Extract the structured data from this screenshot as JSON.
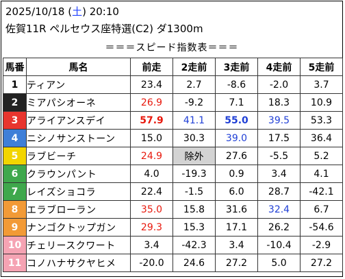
{
  "header": {
    "date": "2025/10/18 (",
    "weekday": "土",
    "time_suffix": ") 20:10",
    "race": "佐賀11R ペルセウス座特選(C2) ダ1300m"
  },
  "table_title": "＝＝＝スピード指数表＝＝＝",
  "columns": [
    "馬番",
    "馬名",
    "前走",
    "2走前",
    "3走前",
    "4走前",
    "5走前"
  ],
  "colors": {
    "red_text": "#e8180c",
    "blue_text": "#1f3fd6",
    "highlight_gray": "#d3d3d3"
  },
  "rows": [
    {
      "num": "1",
      "name": "ティアン",
      "bg": "#ffffff",
      "fg": "#000000",
      "cells": [
        {
          "v": "23.4"
        },
        {
          "v": "2.7"
        },
        {
          "v": "-8.6"
        },
        {
          "v": "-2.0"
        },
        {
          "v": "3.7"
        }
      ]
    },
    {
      "num": "2",
      "name": "ミアパシオーネ",
      "bg": "#222222",
      "fg": "#ffffff",
      "cells": [
        {
          "v": "26.9",
          "c": "red"
        },
        {
          "v": "-9.2"
        },
        {
          "v": "7.1"
        },
        {
          "v": "18.3"
        },
        {
          "v": "10.9"
        }
      ]
    },
    {
      "num": "3",
      "name": "アライアンスデイ",
      "bg": "#e8352e",
      "fg": "#ffffff",
      "cells": [
        {
          "v": "57.9",
          "c": "red",
          "b": true
        },
        {
          "v": "41.1",
          "c": "blue"
        },
        {
          "v": "55.0",
          "c": "blue",
          "b": true
        },
        {
          "v": "39.5",
          "c": "blue"
        },
        {
          "v": "53.3"
        }
      ]
    },
    {
      "num": "4",
      "name": "ニシノサンストーン",
      "bg": "#3f7fd8",
      "fg": "#ffffff",
      "cells": [
        {
          "v": "15.0"
        },
        {
          "v": "30.3"
        },
        {
          "v": "39.0",
          "c": "blue"
        },
        {
          "v": "17.5"
        },
        {
          "v": "36.4"
        }
      ]
    },
    {
      "num": "5",
      "name": "ラブビーチ",
      "bg": "#f2d500",
      "fg": "#ffffff",
      "cells": [
        {
          "v": "24.9",
          "c": "red"
        },
        {
          "v": "除外",
          "g": true
        },
        {
          "v": "27.6"
        },
        {
          "v": "-5.5"
        },
        {
          "v": "5.2"
        }
      ]
    },
    {
      "num": "6",
      "name": "クラウンパント",
      "bg": "#3fa84c",
      "fg": "#ffffff",
      "cells": [
        {
          "v": "4.0"
        },
        {
          "v": "-19.3"
        },
        {
          "v": "0.9"
        },
        {
          "v": "3.4"
        },
        {
          "v": "4.1"
        }
      ]
    },
    {
      "num": "7",
      "name": "レイズショコラ",
      "bg": "#3fa84c",
      "fg": "#ffffff",
      "cells": [
        {
          "v": "22.4"
        },
        {
          "v": "-1.5"
        },
        {
          "v": "6.0"
        },
        {
          "v": "28.7"
        },
        {
          "v": "-42.1"
        }
      ]
    },
    {
      "num": "8",
      "name": "エラブローラン",
      "bg": "#f29a36",
      "fg": "#ffffff",
      "cells": [
        {
          "v": "35.0",
          "c": "red"
        },
        {
          "v": "15.8"
        },
        {
          "v": "31.6"
        },
        {
          "v": "32.4",
          "c": "blue"
        },
        {
          "v": "6.7"
        }
      ]
    },
    {
      "num": "9",
      "name": "ナンゴクトップガン",
      "bg": "#f29a36",
      "fg": "#ffffff",
      "cells": [
        {
          "v": "29.3",
          "c": "red"
        },
        {
          "v": "15.3"
        },
        {
          "v": "17.1"
        },
        {
          "v": "26.2"
        },
        {
          "v": "-54.6"
        }
      ]
    },
    {
      "num": "10",
      "name": "チェリースクワート",
      "bg": "#f5a3b3",
      "fg": "#ffffff",
      "cells": [
        {
          "v": "3.4"
        },
        {
          "v": "-42.3"
        },
        {
          "v": "3.4"
        },
        {
          "v": "-10.4"
        },
        {
          "v": "-2.9"
        }
      ]
    },
    {
      "num": "11",
      "name": "コノハナサクヤヒメ",
      "bg": "#f5a3b3",
      "fg": "#ffffff",
      "cells": [
        {
          "v": "-20.0"
        },
        {
          "v": "24.6"
        },
        {
          "v": "27.2"
        },
        {
          "v": "5.0"
        },
        {
          "v": "27.2"
        }
      ]
    }
  ]
}
